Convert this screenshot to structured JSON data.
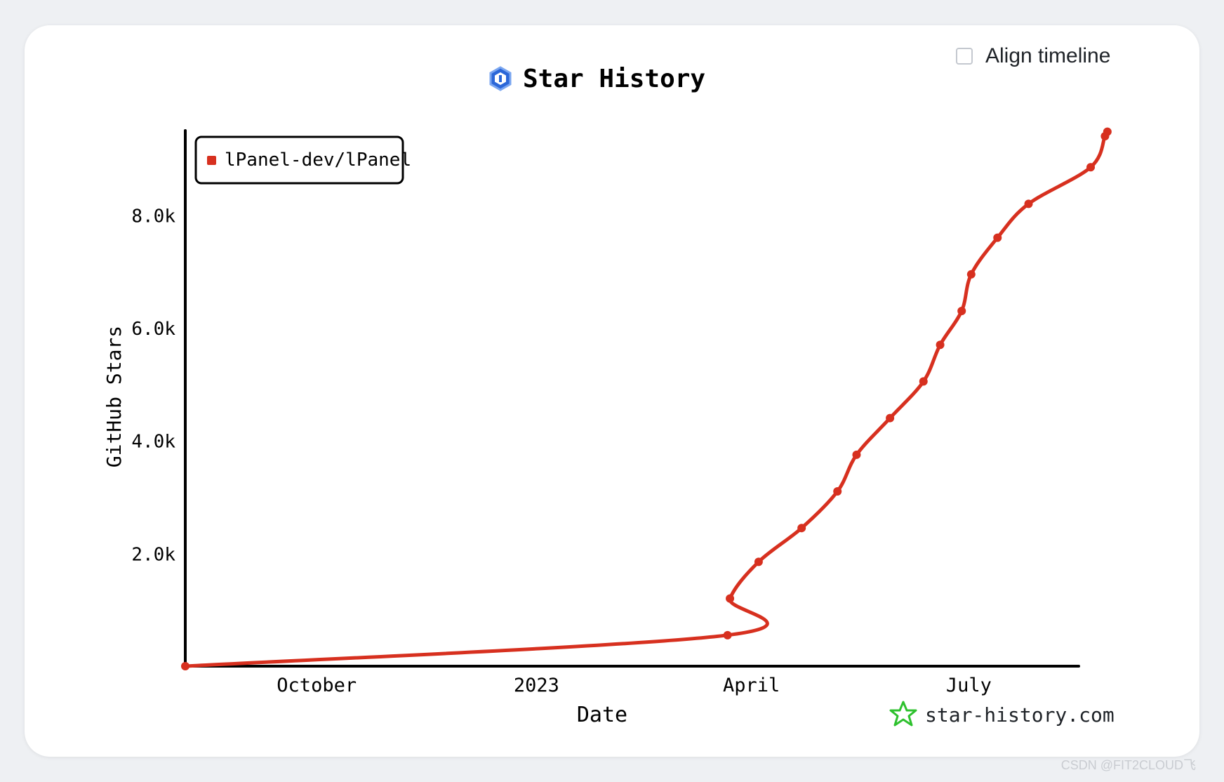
{
  "align_timeline": {
    "label": "Align timeline",
    "checked": false
  },
  "watermark": "CSDN @FIT2CLOUD飞",
  "brand": {
    "text": "star-history.com",
    "icon": "star-history-logo-icon",
    "color": "#2ec12e"
  },
  "colors": {
    "series": "#d7301f",
    "axis": "#000000"
  },
  "chart_data": {
    "type": "line",
    "title": "Star History",
    "title_icon": "repo-hexagon-icon",
    "xlabel": "Date",
    "ylabel": "GitHub Stars",
    "legend": {
      "placement": "top-left"
    },
    "grid": false,
    "xlim": [
      "2022-08-07",
      "2023-08-16"
    ],
    "ylim": [
      0,
      9500
    ],
    "x_ticks": [
      {
        "date": "2022-10-01",
        "label": "October"
      },
      {
        "date": "2023-01-01",
        "label": "2023"
      },
      {
        "date": "2023-04-01",
        "label": "April"
      },
      {
        "date": "2023-07-01",
        "label": "July"
      }
    ],
    "y_ticks": [
      {
        "value": 2000,
        "label": "2.0k"
      },
      {
        "value": 4000,
        "label": "4.0k"
      },
      {
        "value": 6000,
        "label": "6.0k"
      },
      {
        "value": 8000,
        "label": "8.0k"
      }
    ],
    "series": [
      {
        "name": "lPanel-dev/lPanel",
        "points": [
          {
            "x": "2022-08-07",
            "y": 0
          },
          {
            "x": "2023-03-22",
            "y": 550
          },
          {
            "x": "2023-03-23",
            "y": 1200
          },
          {
            "x": "2023-04-04",
            "y": 1850
          },
          {
            "x": "2023-04-22",
            "y": 2450
          },
          {
            "x": "2023-05-07",
            "y": 3100
          },
          {
            "x": "2023-05-15",
            "y": 3750
          },
          {
            "x": "2023-05-29",
            "y": 4400
          },
          {
            "x": "2023-06-12",
            "y": 5050
          },
          {
            "x": "2023-06-19",
            "y": 5700
          },
          {
            "x": "2023-06-28",
            "y": 6300
          },
          {
            "x": "2023-07-02",
            "y": 6950
          },
          {
            "x": "2023-07-13",
            "y": 7600
          },
          {
            "x": "2023-07-26",
            "y": 8200
          },
          {
            "x": "2023-08-21",
            "y": 8850
          },
          {
            "x": "2023-08-27",
            "y": 9400
          },
          {
            "x": "2023-08-28",
            "y": 9480
          }
        ]
      }
    ]
  }
}
